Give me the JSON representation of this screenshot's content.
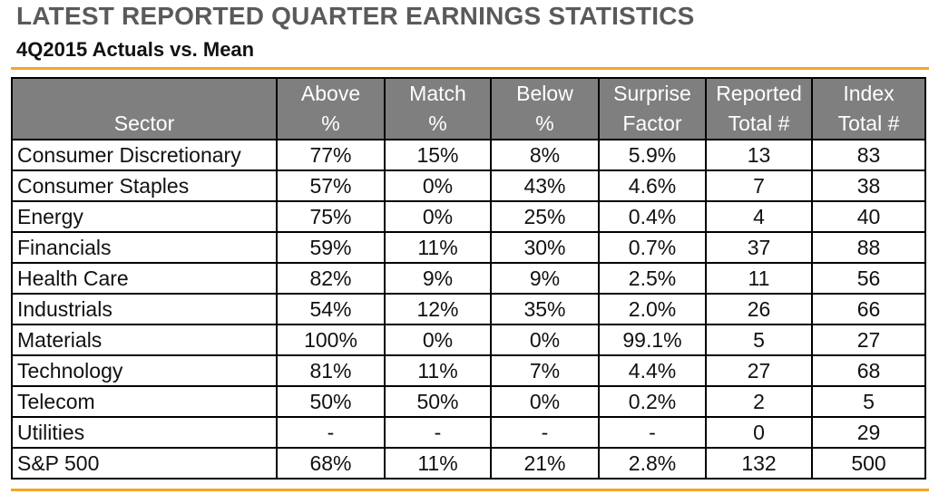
{
  "title": "LATEST REPORTED QUARTER EARNINGS STATISTICS",
  "subtitle": "4Q2015 Actuals vs. Mean",
  "headers": [
    {
      "line1": "",
      "line2": "Sector"
    },
    {
      "line1": "Above",
      "line2": "%"
    },
    {
      "line1": "Match",
      "line2": "%"
    },
    {
      "line1": "Below",
      "line2": "%"
    },
    {
      "line1": "Surprise",
      "line2": "Factor"
    },
    {
      "line1": "Reported",
      "line2": "Total #"
    },
    {
      "line1": "Index",
      "line2": "Total #"
    }
  ],
  "rows": [
    [
      "Consumer Discretionary",
      "77%",
      "15%",
      "8%",
      "5.9%",
      "13",
      "83"
    ],
    [
      "Consumer Staples",
      "57%",
      "0%",
      "43%",
      "4.6%",
      "7",
      "38"
    ],
    [
      "Energy",
      "75%",
      "0%",
      "25%",
      "0.4%",
      "4",
      "40"
    ],
    [
      "Financials",
      "59%",
      "11%",
      "30%",
      "0.7%",
      "37",
      "88"
    ],
    [
      "Health Care",
      "82%",
      "9%",
      "9%",
      "2.5%",
      "11",
      "56"
    ],
    [
      "Industrials",
      "54%",
      "12%",
      "35%",
      "2.0%",
      "26",
      "66"
    ],
    [
      "Materials",
      "100%",
      "0%",
      "0%",
      "99.1%",
      "5",
      "27"
    ],
    [
      "Technology",
      "81%",
      "11%",
      "7%",
      "4.4%",
      "27",
      "68"
    ],
    [
      "Telecom",
      "50%",
      "50%",
      "0%",
      "0.2%",
      "2",
      "5"
    ],
    [
      "Utilities",
      "-",
      "-",
      "-",
      "-",
      "0",
      "29"
    ],
    [
      "S&P 500",
      "68%",
      "11%",
      "21%",
      "2.8%",
      "132",
      "500"
    ]
  ],
  "colors": {
    "accent_rule": "#f5a623",
    "header_bg": "#7f7f7f",
    "title": "#5a5a5a"
  }
}
